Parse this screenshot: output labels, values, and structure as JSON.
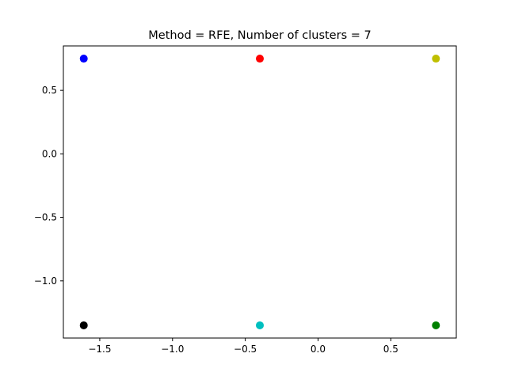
{
  "chart_data": {
    "type": "scatter",
    "title": "Method = RFE, Number of clusters = 7",
    "xlabel": "",
    "ylabel": "",
    "xlim": [
      -1.75,
      0.95
    ],
    "ylim": [
      -1.45,
      0.85
    ],
    "grid": false,
    "xticks": [
      -1.5,
      -1.0,
      -0.5,
      0.0,
      0.5
    ],
    "xtick_labels": [
      "−1.5",
      "−1.0",
      "−0.5",
      "0.0",
      "0.5"
    ],
    "yticks": [
      0.5,
      0.0,
      -0.5,
      -1.0
    ],
    "ytick_labels": [
      "0.5",
      "0.0",
      "−0.5",
      "−1.0"
    ],
    "points": [
      {
        "x": -1.61,
        "y": 0.75,
        "color": "#0000ff"
      },
      {
        "x": -0.4,
        "y": 0.75,
        "color": "#ff0000"
      },
      {
        "x": 0.81,
        "y": 0.75,
        "color": "#bfbf00"
      },
      {
        "x": -1.61,
        "y": -1.35,
        "color": "#000000"
      },
      {
        "x": -0.4,
        "y": -1.35,
        "color": "#00bfbf"
      },
      {
        "x": 0.81,
        "y": -1.35,
        "color": "#008000"
      }
    ]
  }
}
